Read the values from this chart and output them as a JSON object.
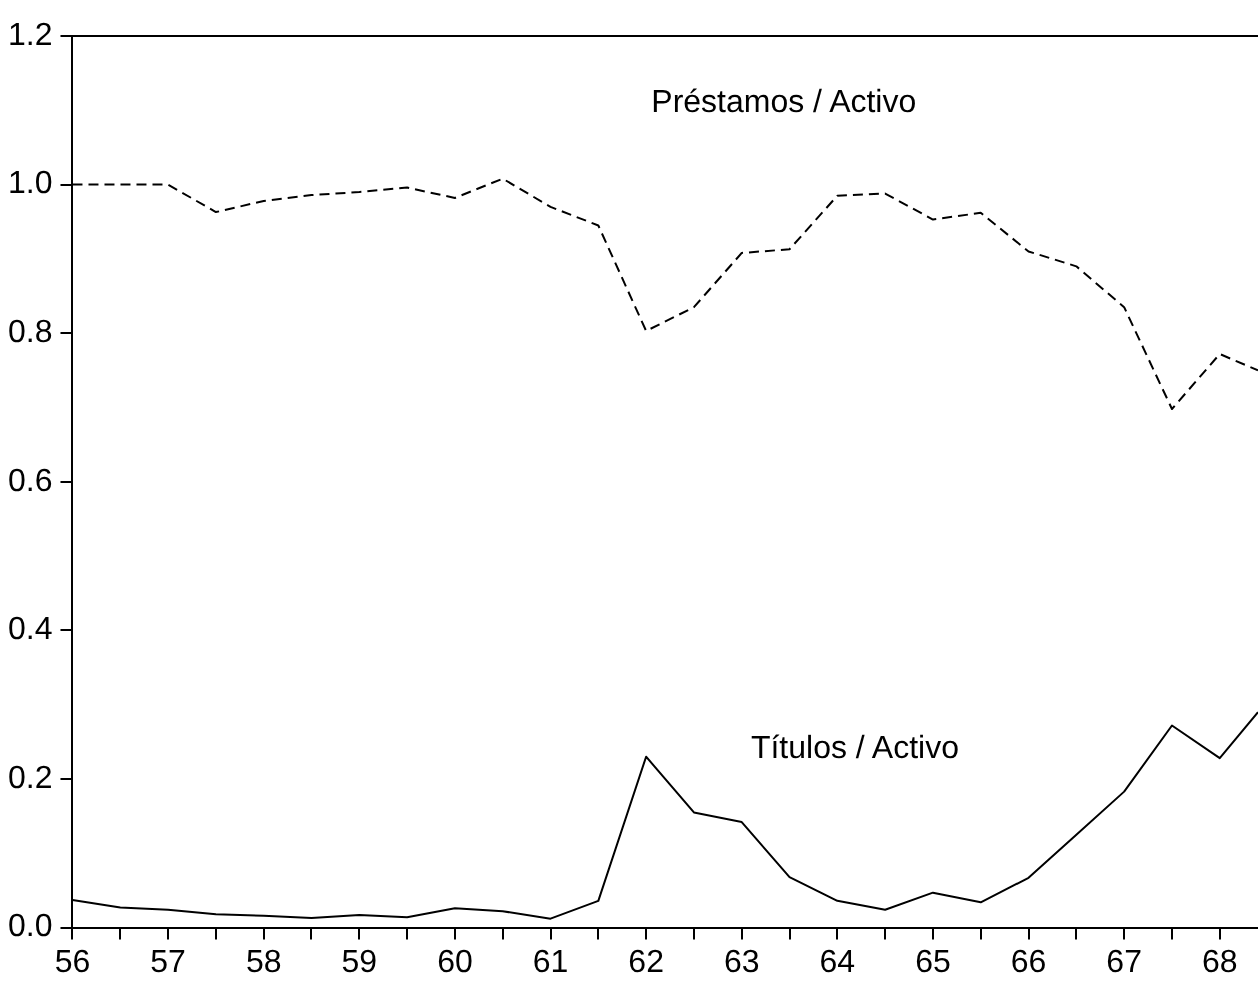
{
  "chart_data": {
    "type": "line",
    "x": [
      56,
      56.5,
      57,
      57.5,
      58,
      58.5,
      59,
      59.5,
      60,
      60.5,
      61,
      61.5,
      62,
      62.5,
      63,
      63.5,
      64,
      64.5,
      65,
      65.5,
      66,
      66.5,
      67,
      67.5,
      68,
      68.4
    ],
    "series": [
      {
        "name": "Préstamos / Activo",
        "color": "#000000",
        "line_style": "dashed",
        "values": [
          1.0,
          1.0,
          1.0,
          0.963,
          0.978,
          0.986,
          0.99,
          0.996,
          0.982,
          1.008,
          0.97,
          0.945,
          0.803,
          0.835,
          0.908,
          0.913,
          0.985,
          0.988,
          0.953,
          0.962,
          0.91,
          0.89,
          0.835,
          0.698,
          0.772,
          0.75
        ]
      },
      {
        "name": "Títulos / Activo",
        "color": "#000000",
        "line_style": "solid",
        "values": [
          0.037,
          0.027,
          0.024,
          0.018,
          0.016,
          0.013,
          0.017,
          0.014,
          0.026,
          0.022,
          0.012,
          0.036,
          0.23,
          0.155,
          0.142,
          0.068,
          0.036,
          0.024,
          0.047,
          0.034,
          0.067,
          0.125,
          0.183,
          0.272,
          0.228,
          0.29
        ]
      }
    ],
    "xlim": [
      56,
      68.4
    ],
    "xticks": [
      56,
      {
        "value": 56.5,
        "label": null
      },
      57,
      {
        "value": 57.5,
        "label": null
      },
      58,
      {
        "value": 58.5,
        "label": null
      },
      59,
      {
        "value": 59.5,
        "label": null
      },
      60,
      {
        "value": 60.5,
        "label": null
      },
      61,
      {
        "value": 61.5,
        "label": null
      },
      62,
      {
        "value": 62.5,
        "label": null
      },
      63,
      {
        "value": 63.5,
        "label": null
      },
      64,
      {
        "value": 64.5,
        "label": null
      },
      65,
      {
        "value": 65.5,
        "label": null
      },
      66,
      {
        "value": 66.5,
        "label": null
      },
      67,
      {
        "value": 67.5,
        "label": null
      },
      68
    ],
    "ylim": [
      0,
      1.2
    ],
    "yticks": [
      {
        "value": 0,
        "label": "0.0"
      },
      0.2,
      0.4,
      0.6,
      0.8,
      {
        "value": 1,
        "label": "1.0"
      },
      1.2
    ],
    "grid": false,
    "legend": false,
    "marker": "none"
  }
}
